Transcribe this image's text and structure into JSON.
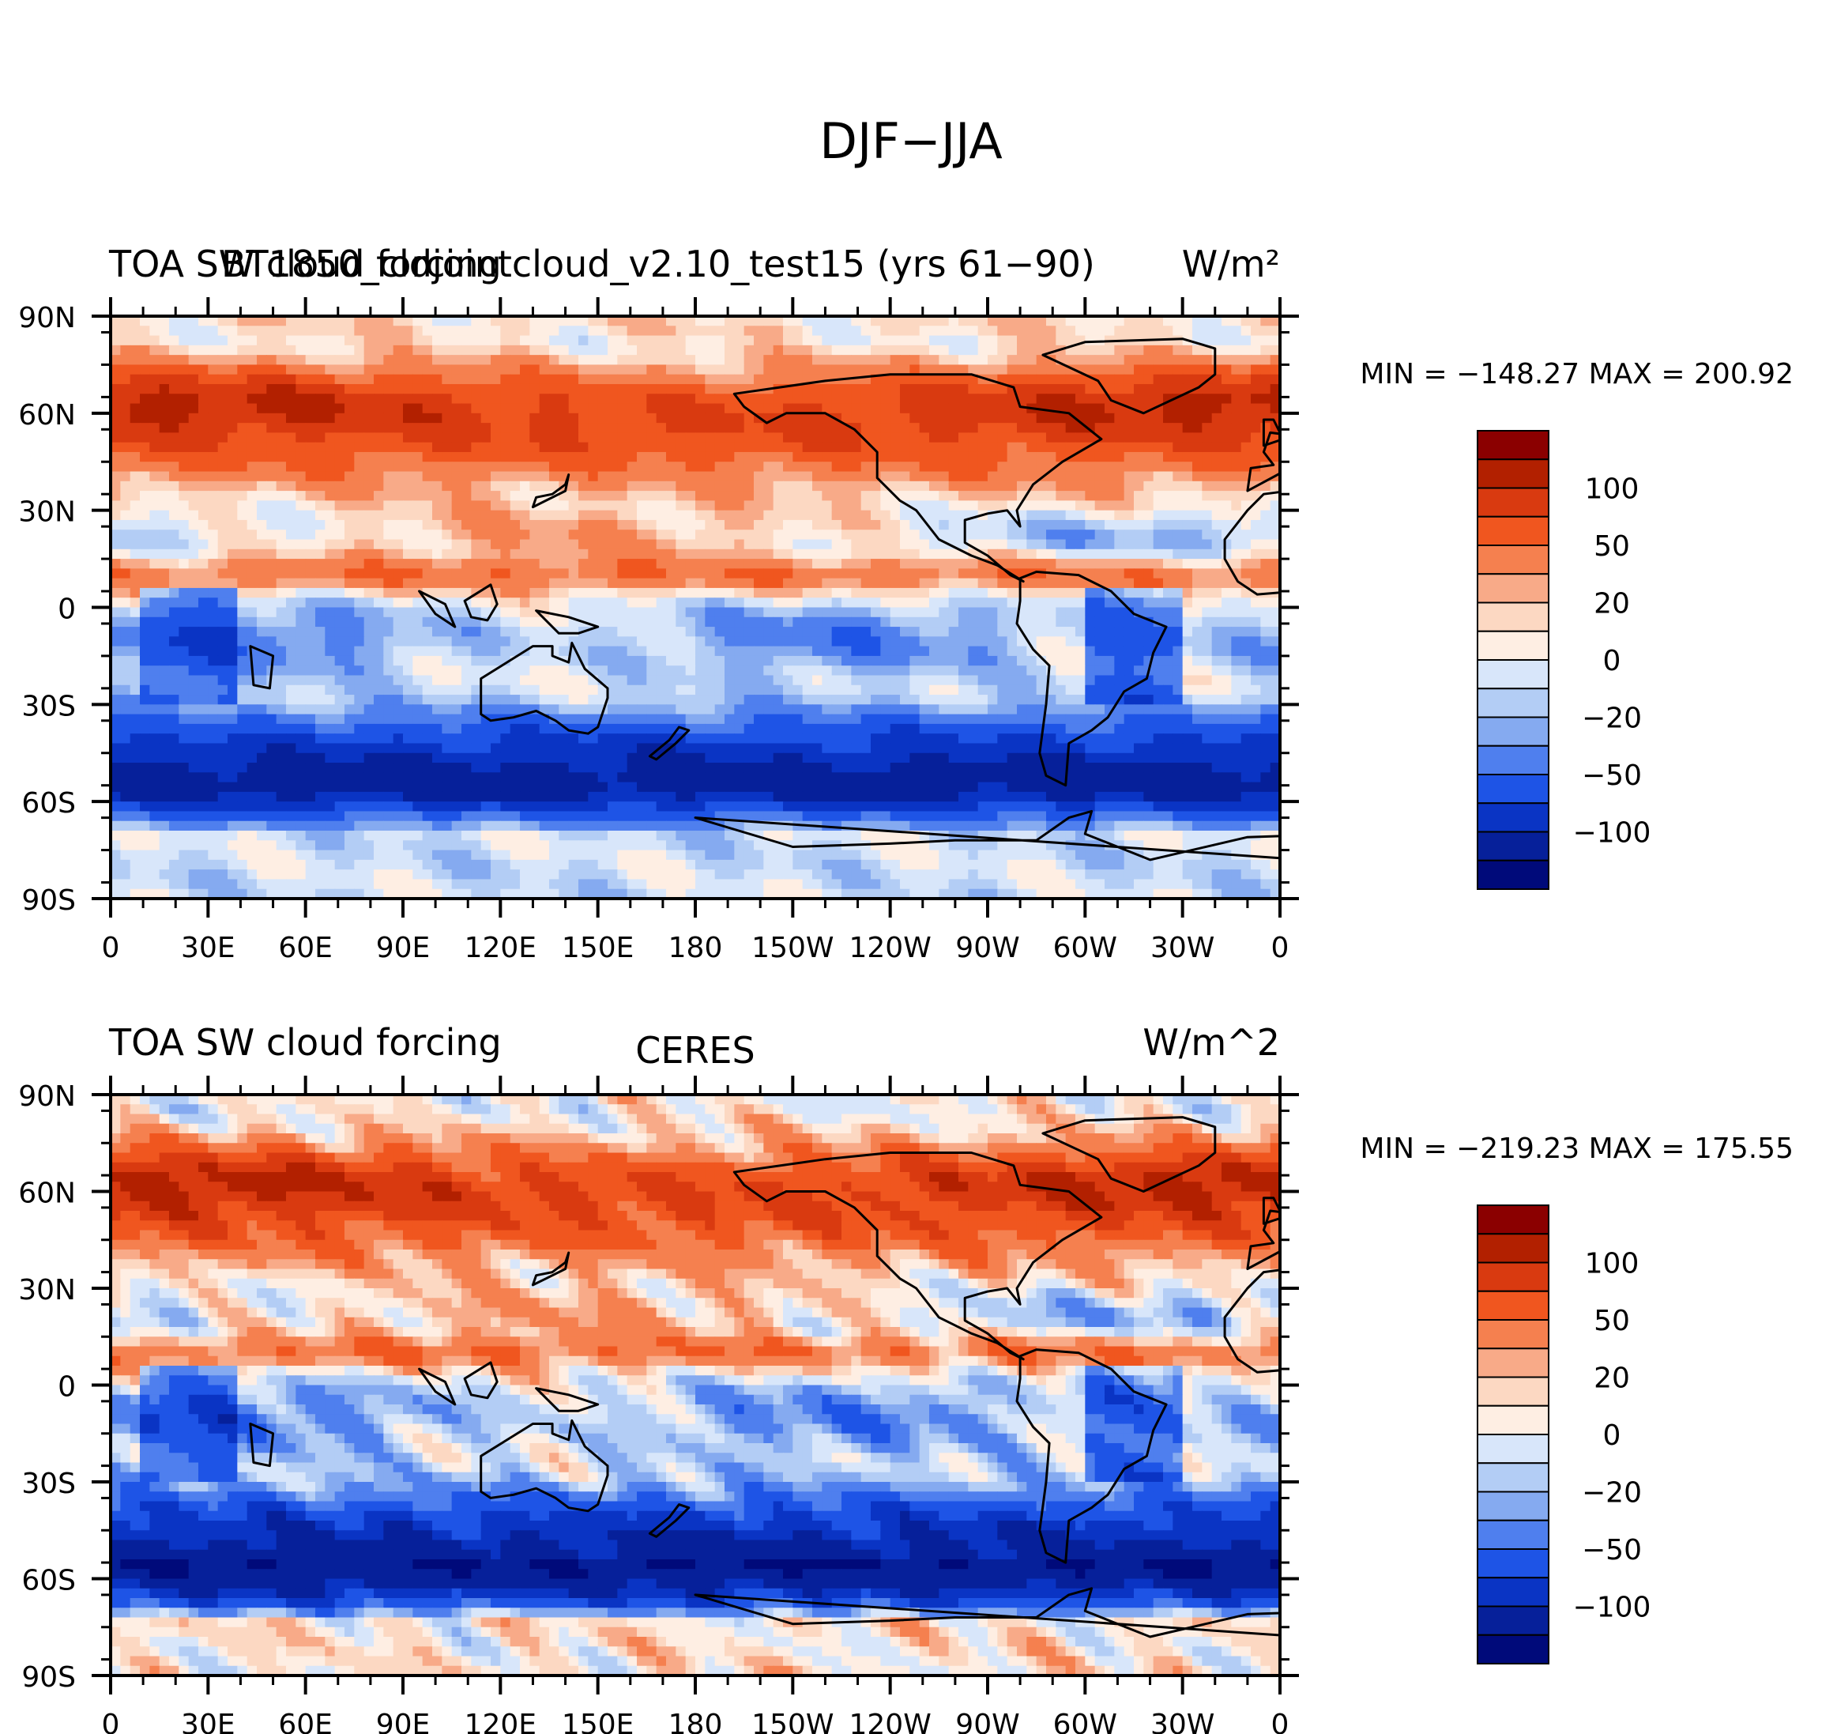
{
  "figure": {
    "title": "DJF−JJA"
  },
  "panels": [
    {
      "id": "model",
      "left_label": "TOA SW cloud forcing",
      "center_label": "BT1850_cldjointcloud_v2.10_test15 (yrs 61−90)",
      "right_label": "W/m²",
      "min_max": "MIN = −148.27   MAX = 200.92",
      "variant": 0
    },
    {
      "id": "obs",
      "left_label": "TOA SW cloud forcing",
      "center_label": "CERES",
      "right_label": "W/m^2",
      "min_max": "MIN = −219.23   MAX = 175.55",
      "variant": 1
    }
  ],
  "lat_ticks": [
    "90N",
    "60N",
    "30N",
    "0",
    "30S",
    "60S",
    "90S"
  ],
  "lon_ticks": [
    "0",
    "30E",
    "60E",
    "90E",
    "120E",
    "150E",
    "180",
    "150W",
    "120W",
    "90W",
    "60W",
    "30W",
    "0"
  ],
  "colorbar": {
    "colors": [
      "#8B0000",
      "#B22000",
      "#D93A10",
      "#F0561F",
      "#F5804F",
      "#F8AA88",
      "#FCD8C2",
      "#FEEEE3",
      "#D8E6FA",
      "#B3CDF5",
      "#85AAF0",
      "#4F7FEE",
      "#1E54E6",
      "#0A34C4",
      "#06209A",
      "#000A7A"
    ],
    "labels": [
      "100",
      "50",
      "20",
      "0",
      "−20",
      "−50",
      "−100"
    ]
  }
}
